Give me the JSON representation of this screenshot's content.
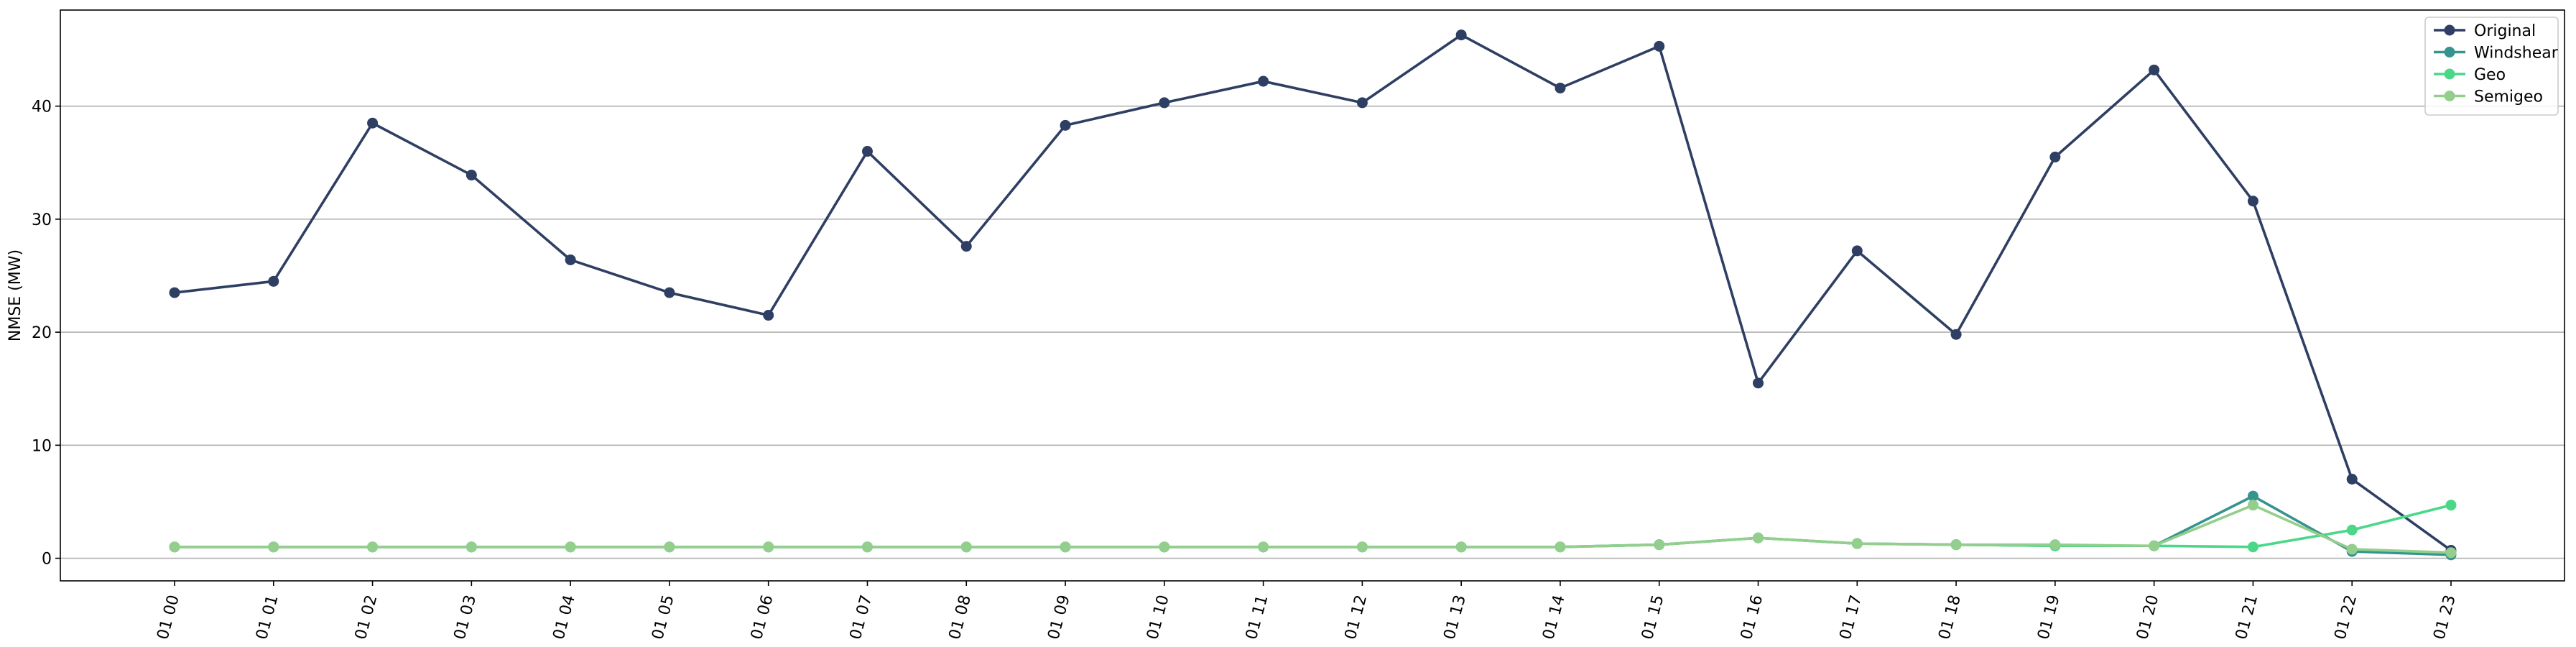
{
  "chart_data": {
    "type": "line",
    "ylabel": "NMSE (MW)",
    "ylim": [
      -2,
      48.5
    ],
    "yticks": [
      0,
      10,
      20,
      30,
      40
    ],
    "grid": "y",
    "legend_position": "top-right",
    "categories": [
      "01 00",
      "01 01",
      "01 02",
      "01 03",
      "01 04",
      "01 05",
      "01 06",
      "01 07",
      "01 08",
      "01 09",
      "01 10",
      "01 11",
      "01 12",
      "01 13",
      "01 14",
      "01 15",
      "01 16",
      "01 17",
      "01 18",
      "01 19",
      "01 20",
      "01 21",
      "01 22",
      "01 23"
    ],
    "series": [
      {
        "name": "Original",
        "color": "#2e3f63",
        "values": [
          23.5,
          24.5,
          38.5,
          33.9,
          26.4,
          23.5,
          21.5,
          36.0,
          27.6,
          38.3,
          40.3,
          42.2,
          40.3,
          46.3,
          41.6,
          45.3,
          15.5,
          27.2,
          19.8,
          35.5,
          43.2,
          31.6,
          7.0,
          0.7
        ]
      },
      {
        "name": "Windshear",
        "color": "#35948e",
        "values": [
          1.0,
          1.0,
          1.0,
          1.0,
          1.0,
          1.0,
          1.0,
          1.0,
          1.0,
          1.0,
          1.0,
          1.0,
          1.0,
          1.0,
          1.0,
          1.2,
          1.8,
          1.3,
          1.2,
          1.1,
          1.1,
          5.5,
          0.6,
          0.3
        ]
      },
      {
        "name": "Geo",
        "color": "#4ad888",
        "values": [
          1.0,
          1.0,
          1.0,
          1.0,
          1.0,
          1.0,
          1.0,
          1.0,
          1.0,
          1.0,
          1.0,
          1.0,
          1.0,
          1.0,
          1.0,
          1.2,
          1.8,
          1.3,
          1.2,
          1.1,
          1.1,
          1.0,
          2.5,
          4.7
        ]
      },
      {
        "name": "Semigeo",
        "color": "#93ce8c",
        "values": [
          1.0,
          1.0,
          1.0,
          1.0,
          1.0,
          1.0,
          1.0,
          1.0,
          1.0,
          1.0,
          1.0,
          1.0,
          1.0,
          1.0,
          1.0,
          1.2,
          1.8,
          1.3,
          1.2,
          1.2,
          1.1,
          4.7,
          0.8,
          0.5
        ]
      }
    ]
  }
}
